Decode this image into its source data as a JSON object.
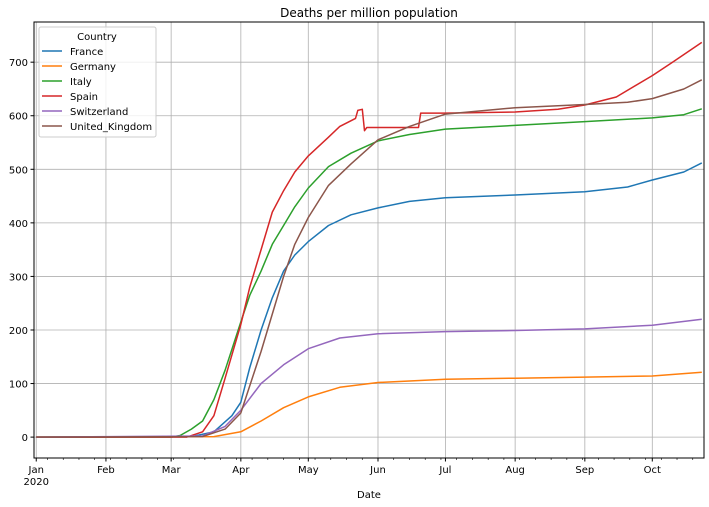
{
  "chart_data": {
    "type": "line",
    "title": "Deaths  per million population",
    "xlabel": "Date",
    "ylabel": "",
    "xlim": [
      "2019-12-31",
      "2020-10-24"
    ],
    "ylim": [
      -39,
      775
    ],
    "grid": true,
    "legend": {
      "title": "Country",
      "placement": "top-left"
    },
    "x_ticks": [
      {
        "date": "2020-01-01",
        "label": "Jan",
        "sub": "2020"
      },
      {
        "date": "2020-02-01",
        "label": "Feb"
      },
      {
        "date": "2020-03-01",
        "label": "Mar"
      },
      {
        "date": "2020-04-01",
        "label": "Apr"
      },
      {
        "date": "2020-05-01",
        "label": "May"
      },
      {
        "date": "2020-06-01",
        "label": "Jun"
      },
      {
        "date": "2020-07-01",
        "label": "Jul"
      },
      {
        "date": "2020-08-01",
        "label": "Aug"
      },
      {
        "date": "2020-09-01",
        "label": "Sep"
      },
      {
        "date": "2020-10-01",
        "label": "Oct"
      }
    ],
    "y_ticks": [
      0,
      100,
      200,
      300,
      400,
      500,
      600,
      700
    ],
    "series": [
      {
        "name": "France",
        "color": "#1f77b4",
        "points": [
          [
            "2020-01-01",
            0
          ],
          [
            "2020-03-10",
            1
          ],
          [
            "2020-03-20",
            10
          ],
          [
            "2020-03-28",
            40
          ],
          [
            "2020-04-01",
            65
          ],
          [
            "2020-04-05",
            130
          ],
          [
            "2020-04-10",
            200
          ],
          [
            "2020-04-15",
            260
          ],
          [
            "2020-04-20",
            310
          ],
          [
            "2020-04-25",
            340
          ],
          [
            "2020-05-01",
            365
          ],
          [
            "2020-05-10",
            395
          ],
          [
            "2020-05-20",
            415
          ],
          [
            "2020-06-01",
            428
          ],
          [
            "2020-06-15",
            440
          ],
          [
            "2020-07-01",
            447
          ],
          [
            "2020-08-01",
            452
          ],
          [
            "2020-09-01",
            458
          ],
          [
            "2020-09-20",
            467
          ],
          [
            "2020-10-01",
            480
          ],
          [
            "2020-10-15",
            495
          ],
          [
            "2020-10-23",
            512
          ]
        ]
      },
      {
        "name": "Germany",
        "color": "#ff7f0e",
        "points": [
          [
            "2020-01-01",
            0
          ],
          [
            "2020-03-20",
            1
          ],
          [
            "2020-04-01",
            10
          ],
          [
            "2020-04-10",
            30
          ],
          [
            "2020-04-20",
            55
          ],
          [
            "2020-05-01",
            75
          ],
          [
            "2020-05-15",
            93
          ],
          [
            "2020-06-01",
            102
          ],
          [
            "2020-07-01",
            108
          ],
          [
            "2020-08-01",
            110
          ],
          [
            "2020-09-01",
            112
          ],
          [
            "2020-10-01",
            114
          ],
          [
            "2020-10-23",
            121
          ]
        ]
      },
      {
        "name": "Italy",
        "color": "#2ca02c",
        "points": [
          [
            "2020-01-01",
            0
          ],
          [
            "2020-03-01",
            0
          ],
          [
            "2020-03-05",
            3
          ],
          [
            "2020-03-10",
            15
          ],
          [
            "2020-03-15",
            30
          ],
          [
            "2020-03-20",
            70
          ],
          [
            "2020-03-25",
            125
          ],
          [
            "2020-04-01",
            215
          ],
          [
            "2020-04-05",
            265
          ],
          [
            "2020-04-10",
            310
          ],
          [
            "2020-04-15",
            360
          ],
          [
            "2020-04-20",
            395
          ],
          [
            "2020-04-25",
            430
          ],
          [
            "2020-05-01",
            465
          ],
          [
            "2020-05-10",
            505
          ],
          [
            "2020-05-20",
            530
          ],
          [
            "2020-06-01",
            553
          ],
          [
            "2020-06-15",
            565
          ],
          [
            "2020-07-01",
            575
          ],
          [
            "2020-08-01",
            582
          ],
          [
            "2020-09-01",
            589
          ],
          [
            "2020-10-01",
            596
          ],
          [
            "2020-10-15",
            602
          ],
          [
            "2020-10-23",
            613
          ]
        ]
      },
      {
        "name": "Spain",
        "color": "#d62728",
        "points": [
          [
            "2020-01-01",
            0
          ],
          [
            "2020-03-08",
            0
          ],
          [
            "2020-03-15",
            10
          ],
          [
            "2020-03-20",
            40
          ],
          [
            "2020-03-25",
            110
          ],
          [
            "2020-04-01",
            210
          ],
          [
            "2020-04-05",
            280
          ],
          [
            "2020-04-10",
            350
          ],
          [
            "2020-04-15",
            420
          ],
          [
            "2020-04-20",
            460
          ],
          [
            "2020-04-25",
            495
          ],
          [
            "2020-05-01",
            525
          ],
          [
            "2020-05-10",
            560
          ],
          [
            "2020-05-15",
            580
          ],
          [
            "2020-05-22",
            595
          ],
          [
            "2020-05-23",
            610
          ],
          [
            "2020-05-25",
            612
          ],
          [
            "2020-05-26",
            572
          ],
          [
            "2020-05-27",
            578
          ],
          [
            "2020-06-19",
            578
          ],
          [
            "2020-06-20",
            605
          ],
          [
            "2020-07-01",
            605
          ],
          [
            "2020-08-01",
            607
          ],
          [
            "2020-08-20",
            612
          ],
          [
            "2020-09-01",
            620
          ],
          [
            "2020-09-15",
            635
          ],
          [
            "2020-10-01",
            675
          ],
          [
            "2020-10-10",
            700
          ],
          [
            "2020-10-23",
            737
          ]
        ]
      },
      {
        "name": "Switzerland",
        "color": "#9467bd",
        "points": [
          [
            "2020-01-01",
            0
          ],
          [
            "2020-03-15",
            2
          ],
          [
            "2020-03-25",
            20
          ],
          [
            "2020-04-01",
            50
          ],
          [
            "2020-04-10",
            100
          ],
          [
            "2020-04-20",
            135
          ],
          [
            "2020-05-01",
            165
          ],
          [
            "2020-05-15",
            185
          ],
          [
            "2020-06-01",
            193
          ],
          [
            "2020-07-01",
            197
          ],
          [
            "2020-08-01",
            199
          ],
          [
            "2020-09-01",
            202
          ],
          [
            "2020-10-01",
            209
          ],
          [
            "2020-10-23",
            220
          ]
        ]
      },
      {
        "name": "United_Kingdom",
        "color": "#8c564b",
        "points": [
          [
            "2020-01-01",
            0
          ],
          [
            "2020-03-15",
            1
          ],
          [
            "2020-03-25",
            15
          ],
          [
            "2020-04-01",
            45
          ],
          [
            "2020-04-10",
            160
          ],
          [
            "2020-04-20",
            300
          ],
          [
            "2020-04-25",
            360
          ],
          [
            "2020-05-01",
            410
          ],
          [
            "2020-05-10",
            470
          ],
          [
            "2020-05-20",
            510
          ],
          [
            "2020-06-01",
            555
          ],
          [
            "2020-06-15",
            580
          ],
          [
            "2020-07-01",
            603
          ],
          [
            "2020-08-01",
            615
          ],
          [
            "2020-09-01",
            621
          ],
          [
            "2020-09-20",
            625
          ],
          [
            "2020-10-01",
            632
          ],
          [
            "2020-10-15",
            650
          ],
          [
            "2020-10-23",
            667
          ]
        ]
      }
    ]
  }
}
